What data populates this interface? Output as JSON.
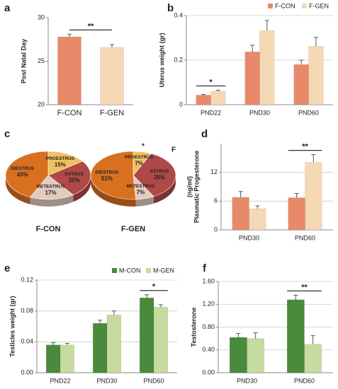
{
  "chart_data": [
    {
      "type": "bar",
      "panel": "a",
      "ylabel": [
        "Post Natal Day"
      ],
      "categories": [
        "F-CON",
        "F-GEN"
      ],
      "values": [
        27.8,
        26.6
      ],
      "errors": [
        0.3,
        0.3
      ],
      "colors": [
        "#e8896a",
        "#f5d8b4"
      ],
      "ylim": [
        20,
        30
      ],
      "yticks": [
        20,
        25,
        30
      ],
      "grid": false,
      "annotations": [
        {
          "text": "**"
        }
      ]
    },
    {
      "type": "grouped_bar",
      "panel": "b",
      "ylabel": [
        "Uterus weight (gr)"
      ],
      "categories": [
        "PND22",
        "PND30",
        "PND60"
      ],
      "series": [
        {
          "name": "F-CON",
          "color": "#e8896a",
          "values": [
            0.043,
            0.237,
            0.18
          ],
          "errors": [
            0.003,
            0.03,
            0.02
          ]
        },
        {
          "name": "F-GEN",
          "color": "#f5d8b4",
          "values": [
            0.06,
            0.333,
            0.262
          ],
          "errors": [
            0.005,
            0.045,
            0.04
          ]
        }
      ],
      "ylim": [
        0,
        0.4
      ],
      "yticks": [
        0,
        0.2,
        0.4
      ],
      "grid": true,
      "annotations": [
        {
          "text": "*",
          "category": 0
        }
      ]
    },
    {
      "type": "pie",
      "panel": "c",
      "colors": [
        "#f0c060",
        "#b04848",
        "#e2cbbd",
        "#d87020"
      ],
      "pies": [
        {
          "title": "F-CON",
          "labels": [
            "PROESTRUS",
            "ESTRUS",
            "METESTRUS",
            "DIESTRUS"
          ],
          "values": [
            15,
            25,
            17,
            43
          ],
          "value_labels": [
            "15%",
            "25%",
            "17%",
            "43%"
          ]
        },
        {
          "title": "F-GEN",
          "labels": [
            "PROESTRUS",
            "ESTRUS",
            "METESTRUS",
            "DIESTRUS"
          ],
          "values": [
            7,
            35,
            7,
            51
          ],
          "value_labels": [
            "7%",
            "35%",
            "7%",
            "51%"
          ]
        }
      ],
      "annotations": [
        {
          "text": "*"
        },
        {
          "text": "F"
        }
      ]
    },
    {
      "type": "grouped_bar",
      "panel": "d",
      "ylabel": [
        "Plasmatic Progesterone",
        "(ng/ml)"
      ],
      "categories": [
        "PND30",
        "PND60"
      ],
      "series": [
        {
          "color": "#e8896a",
          "values": [
            6.8,
            6.7
          ],
          "errors": [
            1.2,
            0.9
          ]
        },
        {
          "color": "#f5d8b4",
          "values": [
            4.4,
            14.1
          ],
          "errors": [
            0.6,
            1.6
          ]
        }
      ],
      "ylim": [
        0,
        18
      ],
      "yticks": [
        0,
        6,
        12
      ],
      "grid": true,
      "annotations": [
        {
          "text": "**",
          "category": 1
        }
      ]
    },
    {
      "type": "grouped_bar",
      "panel": "e",
      "ylabel": [
        "Testicles weight (gr)"
      ],
      "categories": [
        "PND22",
        "PND30",
        "PND60"
      ],
      "series": [
        {
          "name": "M-CON",
          "color": "#4a8a3c",
          "values": [
            0.036,
            0.064,
            0.097
          ],
          "errors": [
            0.003,
            0.004,
            0.004
          ]
        },
        {
          "name": "M-GEN",
          "color": "#c5dba0",
          "values": [
            0.036,
            0.075,
            0.085
          ],
          "errors": [
            0.002,
            0.005,
            0.003
          ]
        }
      ],
      "ylim": [
        0,
        0.12
      ],
      "yticks": [
        {
          "value": 0,
          "label": "0.00"
        },
        0.04,
        0.08,
        0.12
      ],
      "grid": true,
      "annotations": [
        {
          "text": "*",
          "category": 2
        }
      ]
    },
    {
      "type": "grouped_bar",
      "panel": "f",
      "ylabel": [
        "Testosterone"
      ],
      "categories": [
        "PND30",
        "PND60"
      ],
      "series": [
        {
          "color": "#4a8a3c",
          "values": [
            0.62,
            1.28
          ],
          "errors": [
            0.07,
            0.08
          ]
        },
        {
          "color": "#c5dba0",
          "values": [
            0.6,
            0.5
          ],
          "errors": [
            0.1,
            0.15
          ]
        }
      ],
      "ylim": [
        0,
        1.6
      ],
      "yticks": [
        {
          "value": 0,
          "label": "0.00"
        },
        {
          "value": 0.4,
          "label": "0.40"
        },
        {
          "value": 0.8,
          "label": "0.80"
        },
        {
          "value": 1.2,
          "label": "1.20"
        },
        {
          "value": 1.6,
          "label": "1.60"
        }
      ],
      "grid": true,
      "annotations": [
        {
          "text": "**",
          "category": 1
        }
      ]
    }
  ]
}
